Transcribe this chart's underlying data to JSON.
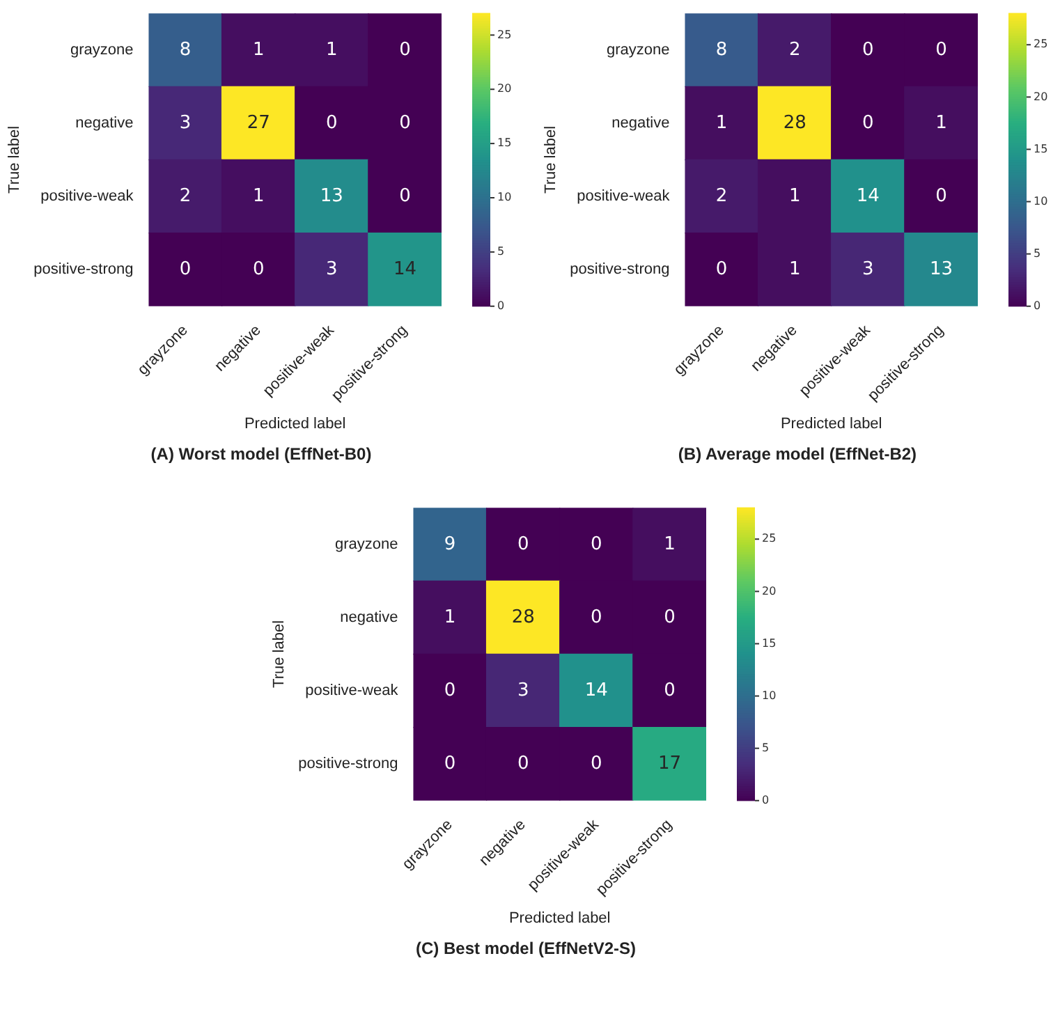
{
  "chart_data": [
    {
      "type": "heatmap",
      "title": "(A) Worst model (EffNet-B0)",
      "xlabel": "Predicted label",
      "ylabel": "True label",
      "categories": [
        "grayzone",
        "negative",
        "positive-weak",
        "positive-strong"
      ],
      "y_categories": [
        "grayzone",
        "negative",
        "positive-weak",
        "positive-strong"
      ],
      "cells": [
        [
          8,
          1,
          1,
          0
        ],
        [
          3,
          27,
          0,
          0
        ],
        [
          2,
          1,
          13,
          0
        ],
        [
          0,
          0,
          3,
          14
        ]
      ],
      "clim": [
        0,
        27
      ],
      "cticks": [
        0,
        5,
        10,
        15,
        20,
        25
      ],
      "data_labels": true
    },
    {
      "type": "heatmap",
      "title": "(B) Average model (EffNet-B2)",
      "xlabel": "Predicted label",
      "ylabel": "True label",
      "categories": [
        "grayzone",
        "negative",
        "positive-weak",
        "positive-strong"
      ],
      "y_categories": [
        "grayzone",
        "negative",
        "positive-weak",
        "positive-strong"
      ],
      "cells": [
        [
          8,
          2,
          0,
          0
        ],
        [
          1,
          28,
          0,
          1
        ],
        [
          2,
          1,
          14,
          0
        ],
        [
          0,
          1,
          3,
          13
        ]
      ],
      "clim": [
        0,
        28
      ],
      "cticks": [
        0,
        5,
        10,
        15,
        20,
        25
      ],
      "data_labels": true
    },
    {
      "type": "heatmap",
      "title": "(C) Best model (EffNetV2-S)",
      "xlabel": "Predicted label",
      "ylabel": "True label",
      "categories": [
        "grayzone",
        "negative",
        "positive-weak",
        "positive-strong"
      ],
      "y_categories": [
        "grayzone",
        "negative",
        "positive-weak",
        "positive-strong"
      ],
      "cells": [
        [
          9,
          0,
          0,
          1
        ],
        [
          1,
          28,
          0,
          0
        ],
        [
          0,
          3,
          14,
          0
        ],
        [
          0,
          0,
          0,
          17
        ]
      ],
      "clim": [
        0,
        28
      ],
      "cticks": [
        0,
        5,
        10,
        15,
        20,
        25
      ],
      "data_labels": true
    }
  ]
}
